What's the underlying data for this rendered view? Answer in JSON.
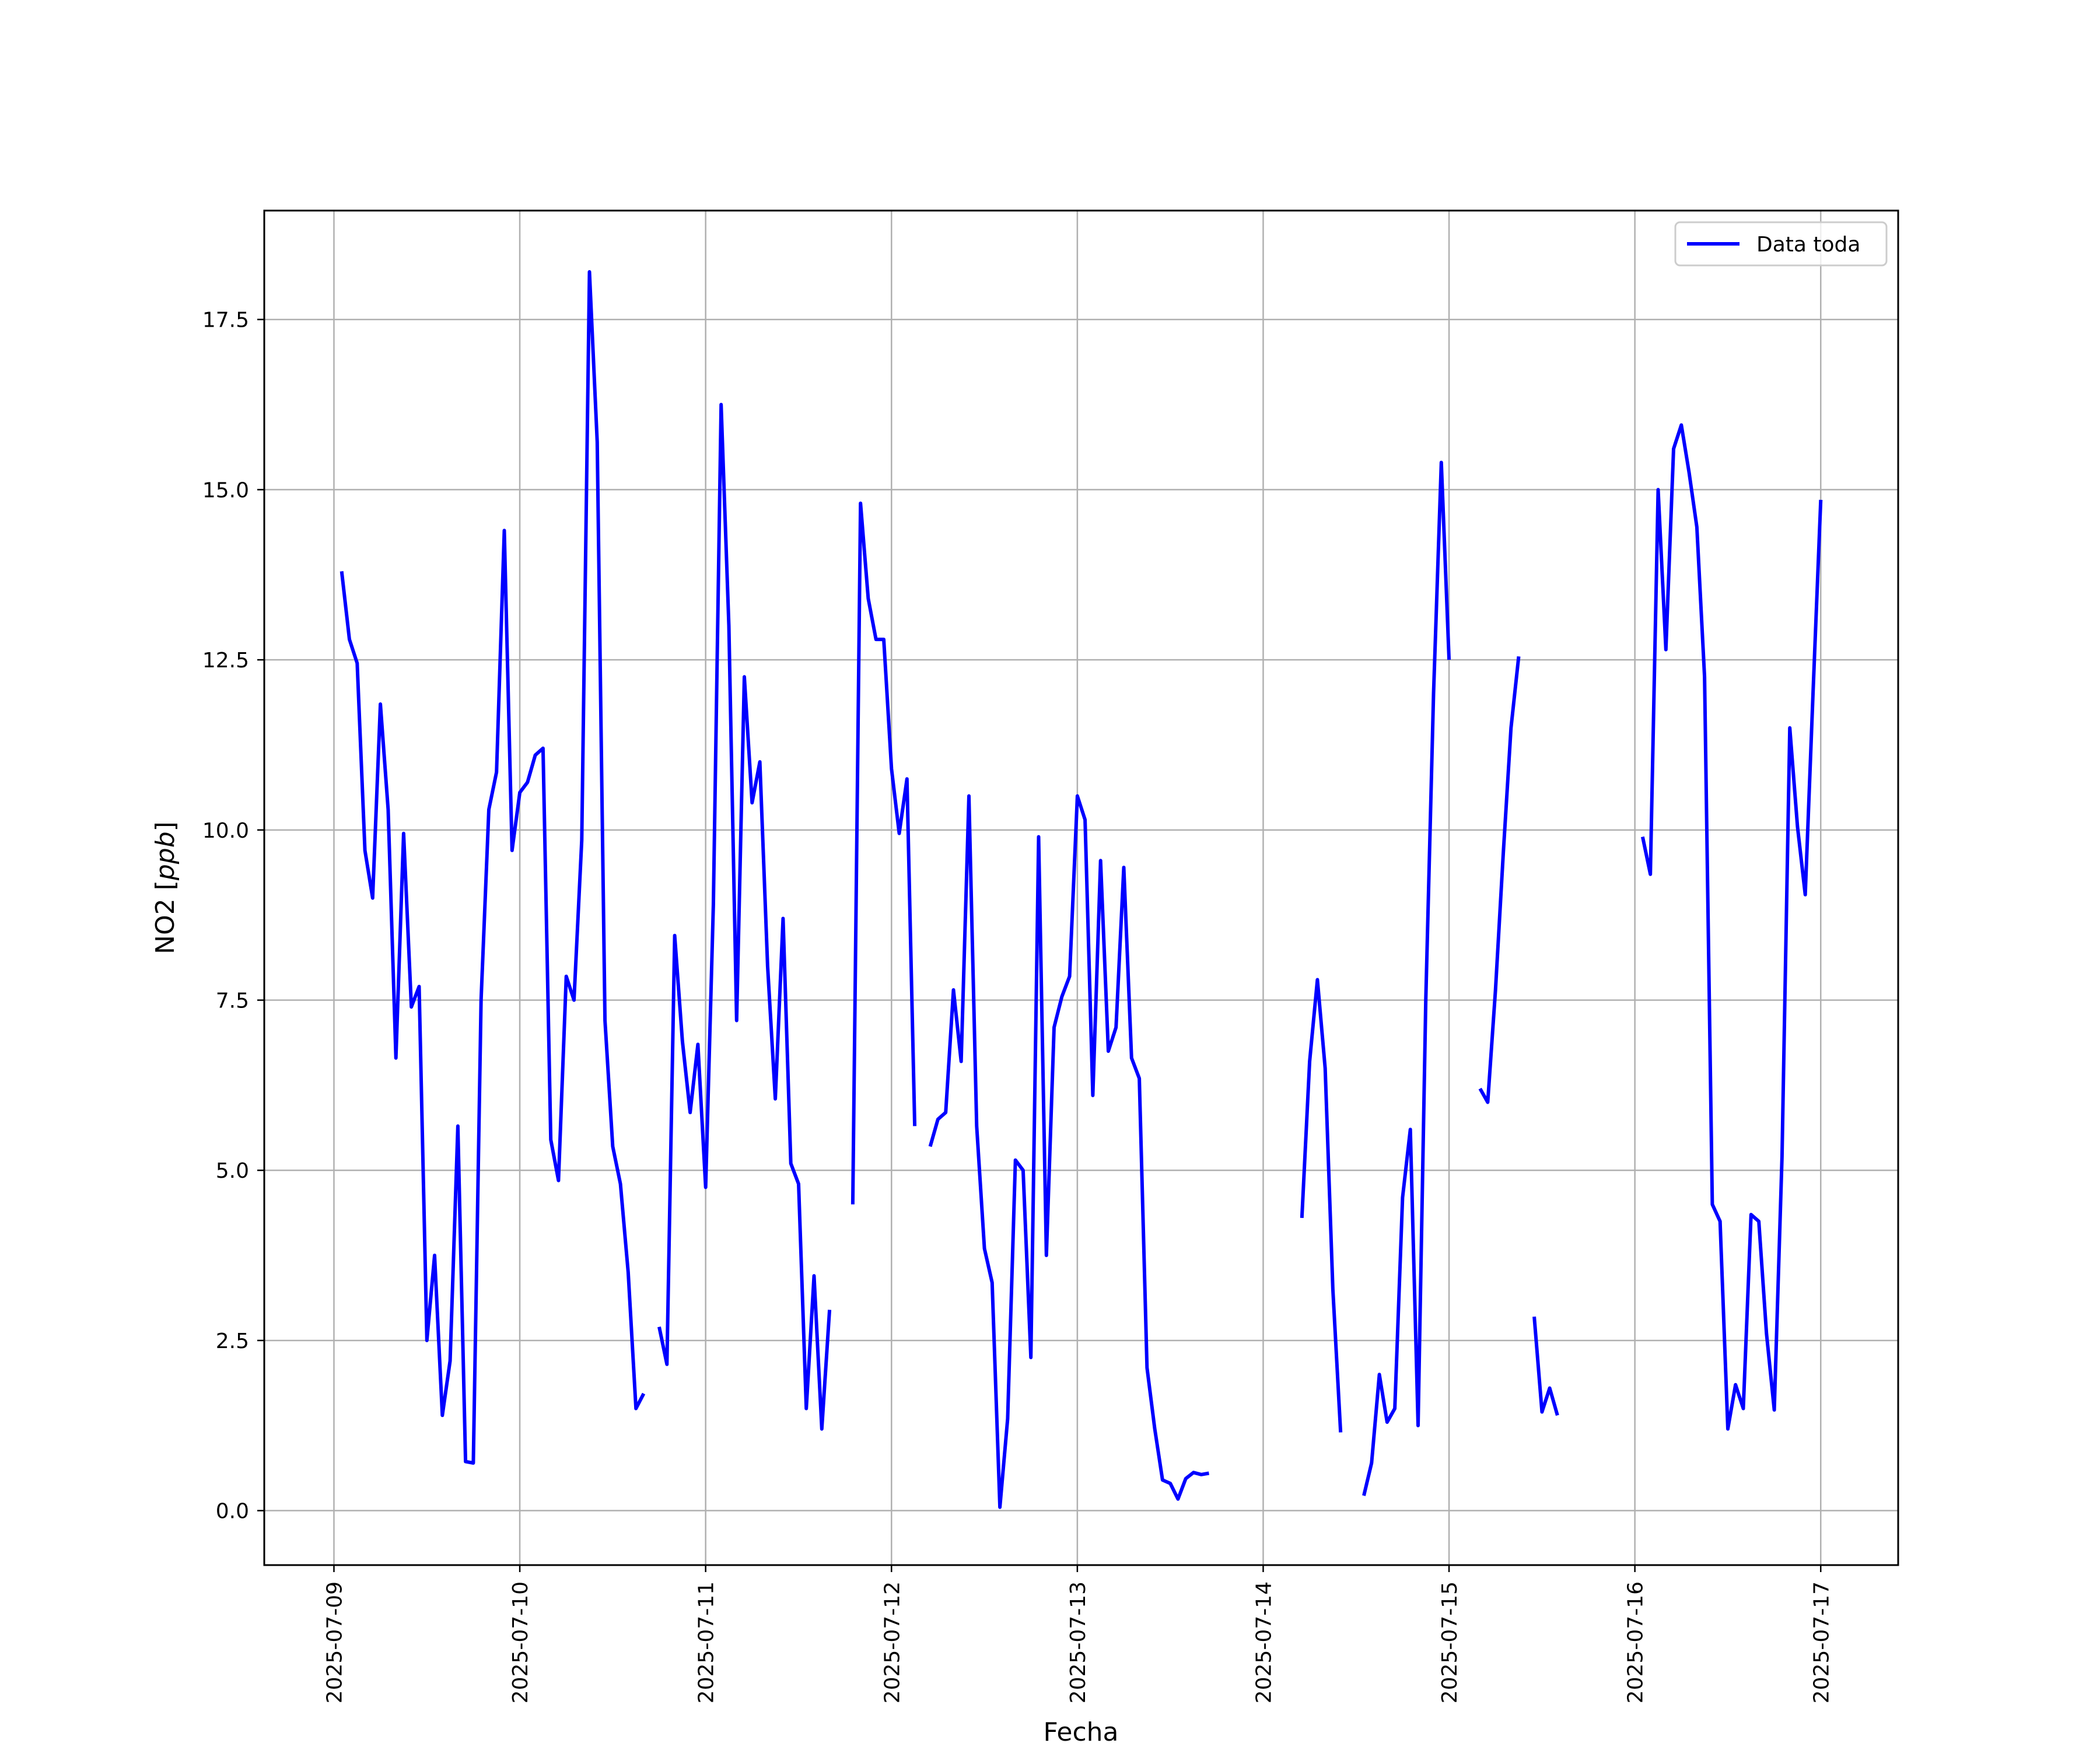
{
  "chart_data": {
    "type": "line",
    "title": "",
    "xlabel": "Fecha",
    "ylabel_main": "NO2 [",
    "ylabel_unit": "ppb",
    "ylabel_end": "]",
    "x_type": "date",
    "xlim": [
      "2025-07-08T15:00",
      "2025-07-17T10:00"
    ],
    "ylim": [
      -0.8,
      19.1
    ],
    "x_ticks": [
      "2025-07-09",
      "2025-07-10",
      "2025-07-11",
      "2025-07-12",
      "2025-07-13",
      "2025-07-14",
      "2025-07-15",
      "2025-07-16",
      "2025-07-17"
    ],
    "y_ticks": [
      0.0,
      2.5,
      5.0,
      7.5,
      10.0,
      12.5,
      15.0,
      17.5
    ],
    "y_tick_labels": [
      "0.0",
      "2.5",
      "5.0",
      "7.5",
      "10.0",
      "12.5",
      "15.0",
      "17.5"
    ],
    "grid": true,
    "legend_position": "top-right",
    "colors": {
      "line": "#0000ff",
      "grid": "#b0b0b0",
      "axes": "#000000"
    },
    "series": [
      {
        "name": "Data toda",
        "segments": [
          [
            [
              "2025-07-09T01:00",
              13.8
            ],
            [
              "2025-07-09T02:00",
              12.8
            ],
            [
              "2025-07-09T03:00",
              12.45
            ],
            [
              "2025-07-09T04:00",
              9.7
            ],
            [
              "2025-07-09T05:00",
              9.0
            ],
            [
              "2025-07-09T06:00",
              11.85
            ],
            [
              "2025-07-09T07:00",
              10.3
            ],
            [
              "2025-07-09T08:00",
              6.65
            ],
            [
              "2025-07-09T09:00",
              9.95
            ],
            [
              "2025-07-09T10:00",
              7.4
            ],
            [
              "2025-07-09T11:00",
              7.7
            ],
            [
              "2025-07-09T12:00",
              2.5
            ],
            [
              "2025-07-09T13:00",
              3.75
            ],
            [
              "2025-07-09T14:00",
              1.4
            ],
            [
              "2025-07-09T15:00",
              2.2
            ],
            [
              "2025-07-09T16:00",
              5.65
            ],
            [
              "2025-07-09T17:00",
              0.72
            ],
            [
              "2025-07-09T18:00",
              0.7
            ],
            [
              "2025-07-09T19:00",
              7.5
            ],
            [
              "2025-07-09T20:00",
              10.3
            ],
            [
              "2025-07-09T21:00",
              10.85
            ],
            [
              "2025-07-09T22:00",
              14.4
            ],
            [
              "2025-07-09T23:00",
              9.7
            ],
            [
              "2025-07-10T00:00",
              10.55
            ],
            [
              "2025-07-10T01:00",
              10.7
            ],
            [
              "2025-07-10T02:00",
              11.1
            ],
            [
              "2025-07-10T03:00",
              11.2
            ],
            [
              "2025-07-10T04:00",
              5.45
            ],
            [
              "2025-07-10T05:00",
              4.85
            ],
            [
              "2025-07-10T06:00",
              7.85
            ],
            [
              "2025-07-10T07:00",
              7.5
            ],
            [
              "2025-07-10T08:00",
              9.85
            ],
            [
              "2025-07-10T09:00",
              18.2
            ],
            [
              "2025-07-10T10:00",
              15.7
            ],
            [
              "2025-07-10T11:00",
              7.2
            ],
            [
              "2025-07-10T12:00",
              5.35
            ],
            [
              "2025-07-10T13:00",
              4.8
            ],
            [
              "2025-07-10T14:00",
              3.5
            ],
            [
              "2025-07-10T15:00",
              1.5
            ],
            [
              "2025-07-10T16:00",
              1.72
            ]
          ],
          [
            [
              "2025-07-10T18:00",
              2.7
            ],
            [
              "2025-07-10T19:00",
              2.15
            ],
            [
              "2025-07-10T20:00",
              8.45
            ],
            [
              "2025-07-10T21:00",
              6.9
            ],
            [
              "2025-07-10T22:00",
              5.85
            ],
            [
              "2025-07-10T23:00",
              6.85
            ],
            [
              "2025-07-11T00:00",
              4.75
            ],
            [
              "2025-07-11T01:00",
              8.9
            ],
            [
              "2025-07-11T02:00",
              16.25
            ],
            [
              "2025-07-11T03:00",
              13.0
            ],
            [
              "2025-07-11T04:00",
              7.2
            ],
            [
              "2025-07-11T05:00",
              12.25
            ],
            [
              "2025-07-11T06:00",
              10.4
            ],
            [
              "2025-07-11T07:00",
              11.0
            ],
            [
              "2025-07-11T08:00",
              8.0
            ],
            [
              "2025-07-11T09:00",
              6.05
            ],
            [
              "2025-07-11T10:00",
              8.7
            ],
            [
              "2025-07-11T11:00",
              5.1
            ],
            [
              "2025-07-11T12:00",
              4.8
            ],
            [
              "2025-07-11T13:00",
              1.5
            ],
            [
              "2025-07-11T14:00",
              3.45
            ],
            [
              "2025-07-11T15:00",
              1.2
            ],
            [
              "2025-07-11T16:00",
              2.95
            ]
          ],
          [
            [
              "2025-07-11T19:00",
              4.5
            ],
            [
              "2025-07-11T20:00",
              14.8
            ],
            [
              "2025-07-11T21:00",
              13.4
            ],
            [
              "2025-07-11T22:00",
              12.8
            ],
            [
              "2025-07-11T23:00",
              12.8
            ],
            [
              "2025-07-12T00:00",
              10.9
            ],
            [
              "2025-07-12T01:00",
              9.95
            ],
            [
              "2025-07-12T02:00",
              10.75
            ],
            [
              "2025-07-12T03:00",
              5.65
            ]
          ],
          [
            [
              "2025-07-12T05:00",
              5.35
            ],
            [
              "2025-07-12T06:00",
              5.75
            ],
            [
              "2025-07-12T07:00",
              5.85
            ],
            [
              "2025-07-12T08:00",
              7.65
            ],
            [
              "2025-07-12T09:00",
              6.6
            ],
            [
              "2025-07-12T10:00",
              10.5
            ],
            [
              "2025-07-12T11:00",
              5.65
            ],
            [
              "2025-07-12T12:00",
              3.85
            ],
            [
              "2025-07-12T13:00",
              3.35
            ],
            [
              "2025-07-12T14:00",
              0.05
            ],
            [
              "2025-07-12T15:00",
              1.35
            ],
            [
              "2025-07-12T16:00",
              5.15
            ],
            [
              "2025-07-12T17:00",
              5.0
            ],
            [
              "2025-07-12T18:00",
              2.25
            ],
            [
              "2025-07-12T19:00",
              9.9
            ],
            [
              "2025-07-12T20:00",
              3.75
            ],
            [
              "2025-07-12T21:00",
              7.1
            ],
            [
              "2025-07-12T22:00",
              7.55
            ],
            [
              "2025-07-12T23:00",
              7.85
            ],
            [
              "2025-07-13T00:00",
              10.5
            ],
            [
              "2025-07-13T01:00",
              10.15
            ],
            [
              "2025-07-13T02:00",
              6.1
            ],
            [
              "2025-07-13T03:00",
              9.55
            ],
            [
              "2025-07-13T04:00",
              6.75
            ],
            [
              "2025-07-13T05:00",
              7.1
            ],
            [
              "2025-07-13T06:00",
              9.45
            ],
            [
              "2025-07-13T07:00",
              6.65
            ],
            [
              "2025-07-13T08:00",
              6.35
            ],
            [
              "2025-07-13T09:00",
              2.1
            ],
            [
              "2025-07-13T10:00",
              1.2
            ],
            [
              "2025-07-13T11:00",
              0.45
            ],
            [
              "2025-07-13T12:00",
              0.4
            ],
            [
              "2025-07-13T13:00",
              0.17
            ],
            [
              "2025-07-13T14:00",
              0.47
            ],
            [
              "2025-07-13T15:00",
              0.56
            ],
            [
              "2025-07-13T16:00",
              0.53
            ],
            [
              "2025-07-13T17:00",
              0.55
            ]
          ],
          [
            [
              "2025-07-14T05:00",
              4.3
            ],
            [
              "2025-07-14T06:00",
              6.6
            ],
            [
              "2025-07-14T07:00",
              7.8
            ],
            [
              "2025-07-14T08:00",
              6.5
            ],
            [
              "2025-07-14T09:00",
              3.25
            ],
            [
              "2025-07-14T10:00",
              1.15
            ]
          ],
          [
            [
              "2025-07-14T13:00",
              0.22
            ],
            [
              "2025-07-14T14:00",
              0.7
            ],
            [
              "2025-07-14T15:00",
              2.0
            ],
            [
              "2025-07-14T16:00",
              1.3
            ],
            [
              "2025-07-14T17:00",
              1.5
            ],
            [
              "2025-07-14T18:00",
              4.6
            ],
            [
              "2025-07-14T19:00",
              5.6
            ],
            [
              "2025-07-14T20:00",
              1.25
            ],
            [
              "2025-07-14T21:00",
              7.5
            ],
            [
              "2025-07-14T22:00",
              12.0
            ],
            [
              "2025-07-14T23:00",
              15.4
            ],
            [
              "2025-07-15T00:00",
              12.5
            ]
          ],
          [
            [
              "2025-07-15T04:00",
              6.2
            ],
            [
              "2025-07-15T05:00",
              6.0
            ],
            [
              "2025-07-15T06:00",
              7.65
            ],
            [
              "2025-07-15T07:00",
              9.65
            ],
            [
              "2025-07-15T08:00",
              11.5
            ],
            [
              "2025-07-15T09:00",
              12.55
            ]
          ],
          [
            [
              "2025-07-15T11:00",
              2.85
            ],
            [
              "2025-07-15T12:00",
              1.45
            ],
            [
              "2025-07-15T13:00",
              1.8
            ],
            [
              "2025-07-15T14:00",
              1.4
            ]
          ],
          [
            [
              "2025-07-16T01:00",
              9.9
            ],
            [
              "2025-07-16T02:00",
              9.35
            ],
            [
              "2025-07-16T03:00",
              15.0
            ],
            [
              "2025-07-16T04:00",
              12.65
            ],
            [
              "2025-07-16T05:00",
              15.6
            ],
            [
              "2025-07-16T06:00",
              15.95
            ],
            [
              "2025-07-16T07:00",
              15.25
            ],
            [
              "2025-07-16T08:00",
              14.45
            ],
            [
              "2025-07-16T09:00",
              12.25
            ],
            [
              "2025-07-16T10:00",
              4.5
            ],
            [
              "2025-07-16T11:00",
              4.25
            ],
            [
              "2025-07-16T12:00",
              1.2
            ],
            [
              "2025-07-16T13:00",
              1.85
            ],
            [
              "2025-07-16T14:00",
              1.5
            ],
            [
              "2025-07-16T15:00",
              4.35
            ],
            [
              "2025-07-16T16:00",
              4.25
            ],
            [
              "2025-07-16T17:00",
              2.6
            ],
            [
              "2025-07-16T18:00",
              1.48
            ],
            [
              "2025-07-16T19:00",
              5.2
            ],
            [
              "2025-07-16T20:00",
              11.5
            ],
            [
              "2025-07-16T21:00",
              10.05
            ],
            [
              "2025-07-16T22:00",
              9.05
            ],
            [
              "2025-07-16T23:00",
              12.0
            ],
            [
              "2025-07-17T00:00",
              14.85
            ]
          ]
        ]
      }
    ]
  }
}
